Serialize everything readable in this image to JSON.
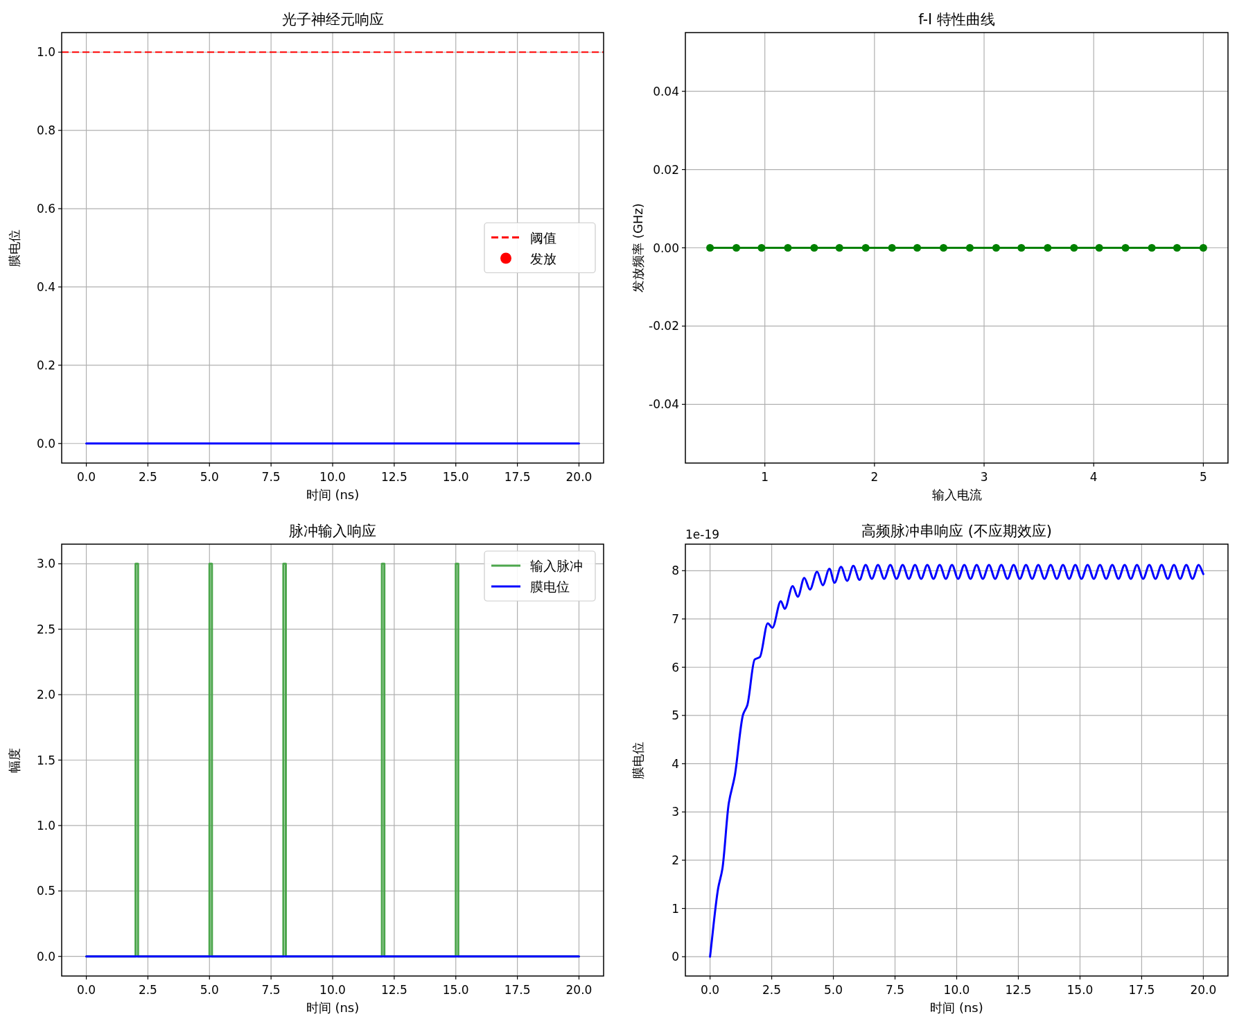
{
  "chart_data": [
    {
      "type": "line",
      "title": "光子神经元响应",
      "xlabel": "时间 (ns)",
      "ylabel": "膜电位",
      "xlim": [
        -1,
        21
      ],
      "ylim": [
        -0.05,
        1.05
      ],
      "xticks": [
        {
          "value": 0,
          "label": "0.0"
        },
        2.5,
        {
          "value": 5,
          "label": "5.0"
        },
        7.5,
        {
          "value": 10,
          "label": "10.0"
        },
        12.5,
        {
          "value": 15,
          "label": "15.0"
        },
        17.5,
        {
          "value": 20,
          "label": "20.0"
        }
      ],
      "yticks": [
        {
          "value": 0,
          "label": "0.0"
        },
        0.2,
        0.4,
        0.6,
        0.8,
        {
          "value": 1,
          "label": "1.0"
        }
      ],
      "grid": true,
      "legend": "right",
      "ref_lines": [
        {
          "axis": "y",
          "value": 1,
          "label": "阈值",
          "color": "#ff0000",
          "line_style": "dashed"
        }
      ],
      "series": [
        {
          "color": "#0000ff",
          "x": [
            0,
            20
          ],
          "values": [
            0,
            0
          ]
        },
        {
          "type": "scatter",
          "name": "发放",
          "color": "#ff0000"
        }
      ]
    },
    {
      "type": "line",
      "title": "f-I 特性曲线",
      "xlabel": "输入电流",
      "ylabel": "发放频率 (GHz)",
      "xlim": [
        0.275,
        5.225
      ],
      "ylim": [
        -0.055,
        0.055
      ],
      "xticks": [
        1,
        2,
        3,
        4,
        5
      ],
      "yticks": [
        -0.04,
        -0.02,
        {
          "value": 0,
          "label": "0.00"
        },
        0.02,
        0.04
      ],
      "grid": true,
      "marker": "circle",
      "series": [
        {
          "color": "#008000",
          "x": [
            0.5,
            0.74,
            0.97,
            1.21,
            1.45,
            1.68,
            1.92,
            2.16,
            2.39,
            2.63,
            2.87,
            3.11,
            3.34,
            3.58,
            3.82,
            4.05,
            4.29,
            4.53,
            4.76,
            5.0
          ],
          "values": [
            0,
            0,
            0,
            0,
            0,
            0,
            0,
            0,
            0,
            0,
            0,
            0,
            0,
            0,
            0,
            0,
            0,
            0,
            0,
            0
          ]
        }
      ]
    },
    {
      "type": "line",
      "title": "脉冲输入响应",
      "xlabel": "时间 (ns)",
      "ylabel": "幅度",
      "xlim": [
        -1,
        21
      ],
      "ylim": [
        -0.15,
        3.15
      ],
      "xticks": [
        {
          "value": 0,
          "label": "0.0"
        },
        2.5,
        {
          "value": 5,
          "label": "5.0"
        },
        7.5,
        {
          "value": 10,
          "label": "10.0"
        },
        12.5,
        {
          "value": 15,
          "label": "15.0"
        },
        17.5,
        {
          "value": 20,
          "label": "20.0"
        }
      ],
      "yticks": [
        {
          "value": 0,
          "label": "0.0"
        },
        0.5,
        {
          "value": 1,
          "label": "1.0"
        },
        1.5,
        {
          "value": 2,
          "label": "2.0"
        },
        2.5,
        {
          "value": 3,
          "label": "3.0"
        }
      ],
      "grid": true,
      "legend": "top right",
      "series": [
        {
          "name": "输入脉冲",
          "color": "#4ca64c",
          "x": [
            0,
            2.0,
            2.0,
            2.1,
            2.1,
            5.0,
            5.0,
            5.1,
            5.1,
            8.0,
            8.0,
            8.1,
            8.1,
            12.0,
            12.0,
            12.1,
            12.1,
            15.0,
            15.0,
            15.1,
            15.1,
            20
          ],
          "values": [
            0,
            0,
            3,
            3,
            0,
            0,
            3,
            3,
            0,
            0,
            3,
            3,
            0,
            0,
            3,
            3,
            0,
            0,
            3,
            3,
            0,
            0
          ]
        },
        {
          "name": "膜电位",
          "color": "#0000ff",
          "x": [
            0,
            20
          ],
          "values": [
            0,
            0
          ]
        }
      ]
    },
    {
      "type": "line",
      "title": "高频脉冲串响应 (不应期效应)",
      "xlabel": "时间 (ns)",
      "ylabel": "膜电位",
      "xlim": [
        -1,
        21
      ],
      "ylim": [
        -0.4,
        8.55
      ],
      "xticks": [
        {
          "value": 0,
          "label": "0.0"
        },
        2.5,
        {
          "value": 5,
          "label": "5.0"
        },
        7.5,
        {
          "value": 10,
          "label": "10.0"
        },
        12.5,
        {
          "value": 15,
          "label": "15.0"
        },
        17.5,
        {
          "value": 20,
          "label": "20.0"
        }
      ],
      "yticks": [
        0,
        1,
        2,
        3,
        4,
        5,
        6,
        7,
        8
      ],
      "grid": true,
      "annotations": [
        "1e-19"
      ],
      "series": [
        {
          "color": "#0000ff",
          "x": [
            0,
            0.33,
            0.5,
            0.76,
            1.0,
            1.34,
            1.51,
            1.81,
            2.02,
            2.34,
            2.53,
            2.87,
            3.03,
            3.35,
            3.56,
            3.82,
            4.05,
            4.34,
            4.57,
            4.84,
            5.05,
            5.31,
            5.56,
            5.81,
            6.06,
            6.31,
            6.56,
            6.81,
            7.06,
            7.31,
            7.56,
            7.81,
            8.06,
            8.31,
            8.56,
            8.81,
            9.06,
            9.31,
            9.56,
            9.81,
            10.06,
            10.31,
            10.56,
            10.81,
            11.06,
            11.31,
            11.56,
            11.81,
            12.06,
            12.31,
            12.56,
            12.81,
            13.06,
            13.31,
            13.56,
            13.81,
            14.06,
            14.31,
            14.56,
            14.81,
            15.06,
            15.31,
            15.56,
            15.81,
            16.06,
            16.31,
            16.56,
            16.81,
            17.06,
            17.31,
            17.56,
            17.81,
            18.06,
            18.31,
            18.56,
            18.81,
            19.06,
            19.31,
            19.56,
            19.81,
            20.0
          ],
          "values": [
            0,
            1.42,
            1.82,
            3.18,
            3.74,
            5.02,
            5.21,
            6.16,
            6.21,
            6.91,
            6.82,
            7.37,
            7.21,
            7.68,
            7.46,
            7.85,
            7.61,
            7.98,
            7.7,
            8.04,
            7.75,
            8.08,
            7.79,
            8.1,
            7.81,
            8.12,
            7.83,
            8.12,
            7.83,
            8.12,
            7.83,
            8.12,
            7.83,
            8.12,
            7.83,
            8.12,
            7.83,
            8.12,
            7.83,
            8.12,
            7.83,
            8.12,
            7.83,
            8.12,
            7.83,
            8.12,
            7.83,
            8.12,
            7.83,
            8.12,
            7.83,
            8.12,
            7.83,
            8.12,
            7.83,
            8.12,
            7.83,
            8.12,
            7.83,
            8.12,
            7.83,
            8.12,
            7.83,
            8.12,
            7.83,
            8.12,
            7.83,
            8.12,
            7.83,
            8.12,
            7.83,
            8.12,
            7.83,
            8.12,
            7.83,
            8.12,
            7.83,
            8.12,
            7.83,
            8.12,
            7.93
          ]
        }
      ]
    }
  ]
}
